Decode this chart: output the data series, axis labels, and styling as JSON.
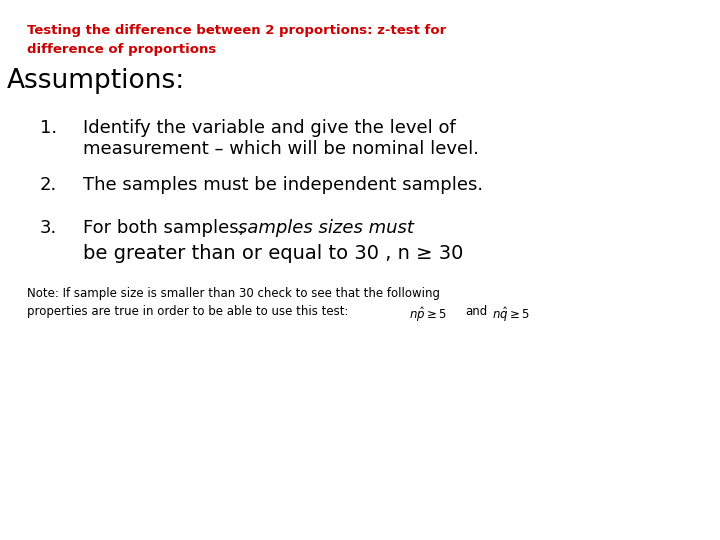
{
  "background_color": "#ffffff",
  "title_line1": "Testing the difference between 2 proportions: z-test for",
  "title_line2": "difference of proportions",
  "title_color": "#cc0000",
  "title_fontsize": 9.5,
  "assumptions_header": "Assumptions:",
  "assumptions_fontsize": 19,
  "item1_num": "1.",
  "item1_text_line1": "Identify the variable and give the level of",
  "item1_text_line2": "measurement – which will be nominal level.",
  "item2_num": "2.",
  "item2_text": "The samples must be independent samples.",
  "item3_num": "3.",
  "item3_text_normal": "For both samples, ",
  "item3_text_italic": "samples sizes must",
  "item3_text_line2": "be greater than or equal to 30 , n ≥ 30",
  "items_fontsize": 13,
  "items_fontsize_large": 14,
  "note_line1": "Note: If sample size is smaller than 30 check to see that the following",
  "note_line2_prefix": "properties are true in order to be able to use this test:  ",
  "note_fontsize": 8.5,
  "num_indent": 0.055,
  "text_indent": 0.115
}
